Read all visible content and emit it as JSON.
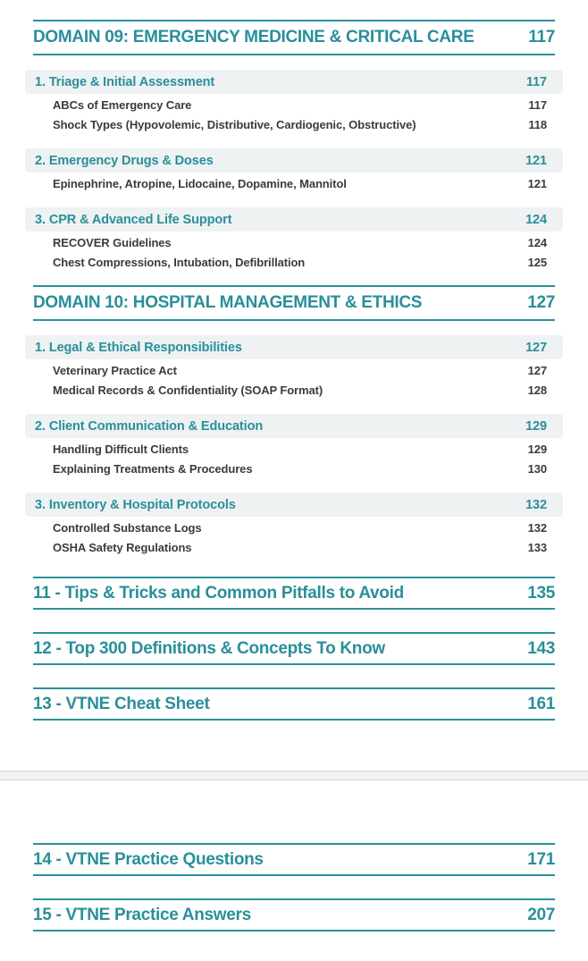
{
  "colors": {
    "accent_teal": "#2a8f99",
    "rule_teal": "#2a929b",
    "section_bar_bg": "#eef2f3",
    "item_text": "#3b3b3b",
    "page_separator_bg": "#f2f2f2"
  },
  "page1": {
    "domains": [
      {
        "title": "DOMAIN 09: EMERGENCY MEDICINE & CRITICAL CARE",
        "page": "117",
        "sections": [
          {
            "title": "1. Triage & Initial Assessment",
            "page": "117",
            "items": [
              {
                "label": "ABCs of Emergency Care",
                "page": "117"
              },
              {
                "label": "Shock Types (Hypovolemic, Distributive, Cardiogenic, Obstructive)",
                "page": "118"
              }
            ]
          },
          {
            "title": "2. Emergency Drugs & Doses",
            "page": "121",
            "items": [
              {
                "label": "Epinephrine, Atropine, Lidocaine, Dopamine, Mannitol",
                "page": "121"
              }
            ]
          },
          {
            "title": "3. CPR & Advanced Life Support",
            "page": "124",
            "items": [
              {
                "label": "RECOVER Guidelines",
                "page": "124"
              },
              {
                "label": "Chest Compressions, Intubation, Defibrillation",
                "page": "125"
              }
            ]
          }
        ]
      },
      {
        "title": "DOMAIN 10: HOSPITAL MANAGEMENT & ETHICS",
        "page": "127",
        "sections": [
          {
            "title": "1. Legal & Ethical Responsibilities",
            "page": "127",
            "items": [
              {
                "label": "Veterinary Practice Act",
                "page": "127"
              },
              {
                "label": "Medical Records & Confidentiality (SOAP Format)",
                "page": "128"
              }
            ]
          },
          {
            "title": "2. Client Communication & Education",
            "page": "129",
            "items": [
              {
                "label": "Handling Difficult Clients",
                "page": "129"
              },
              {
                "label": "Explaining Treatments & Procedures",
                "page": "130"
              }
            ]
          },
          {
            "title": "3. Inventory & Hospital Protocols",
            "page": "132",
            "items": [
              {
                "label": "Controlled Substance Logs",
                "page": "132"
              },
              {
                "label": "OSHA Safety Regulations",
                "page": "133"
              }
            ]
          }
        ]
      }
    ],
    "chapters": [
      {
        "title": "11 - Tips & Tricks and Common Pitfalls to Avoid",
        "page": "135"
      },
      {
        "title": "12 - Top 300 Definitions & Concepts To Know",
        "page": "143"
      },
      {
        "title": "13 - VTNE Cheat Sheet",
        "page": "161"
      }
    ]
  },
  "page2": {
    "chapters": [
      {
        "title": "14 - VTNE Practice Questions",
        "page": "171"
      },
      {
        "title": "15 - VTNE Practice Answers",
        "page": "207"
      }
    ]
  }
}
